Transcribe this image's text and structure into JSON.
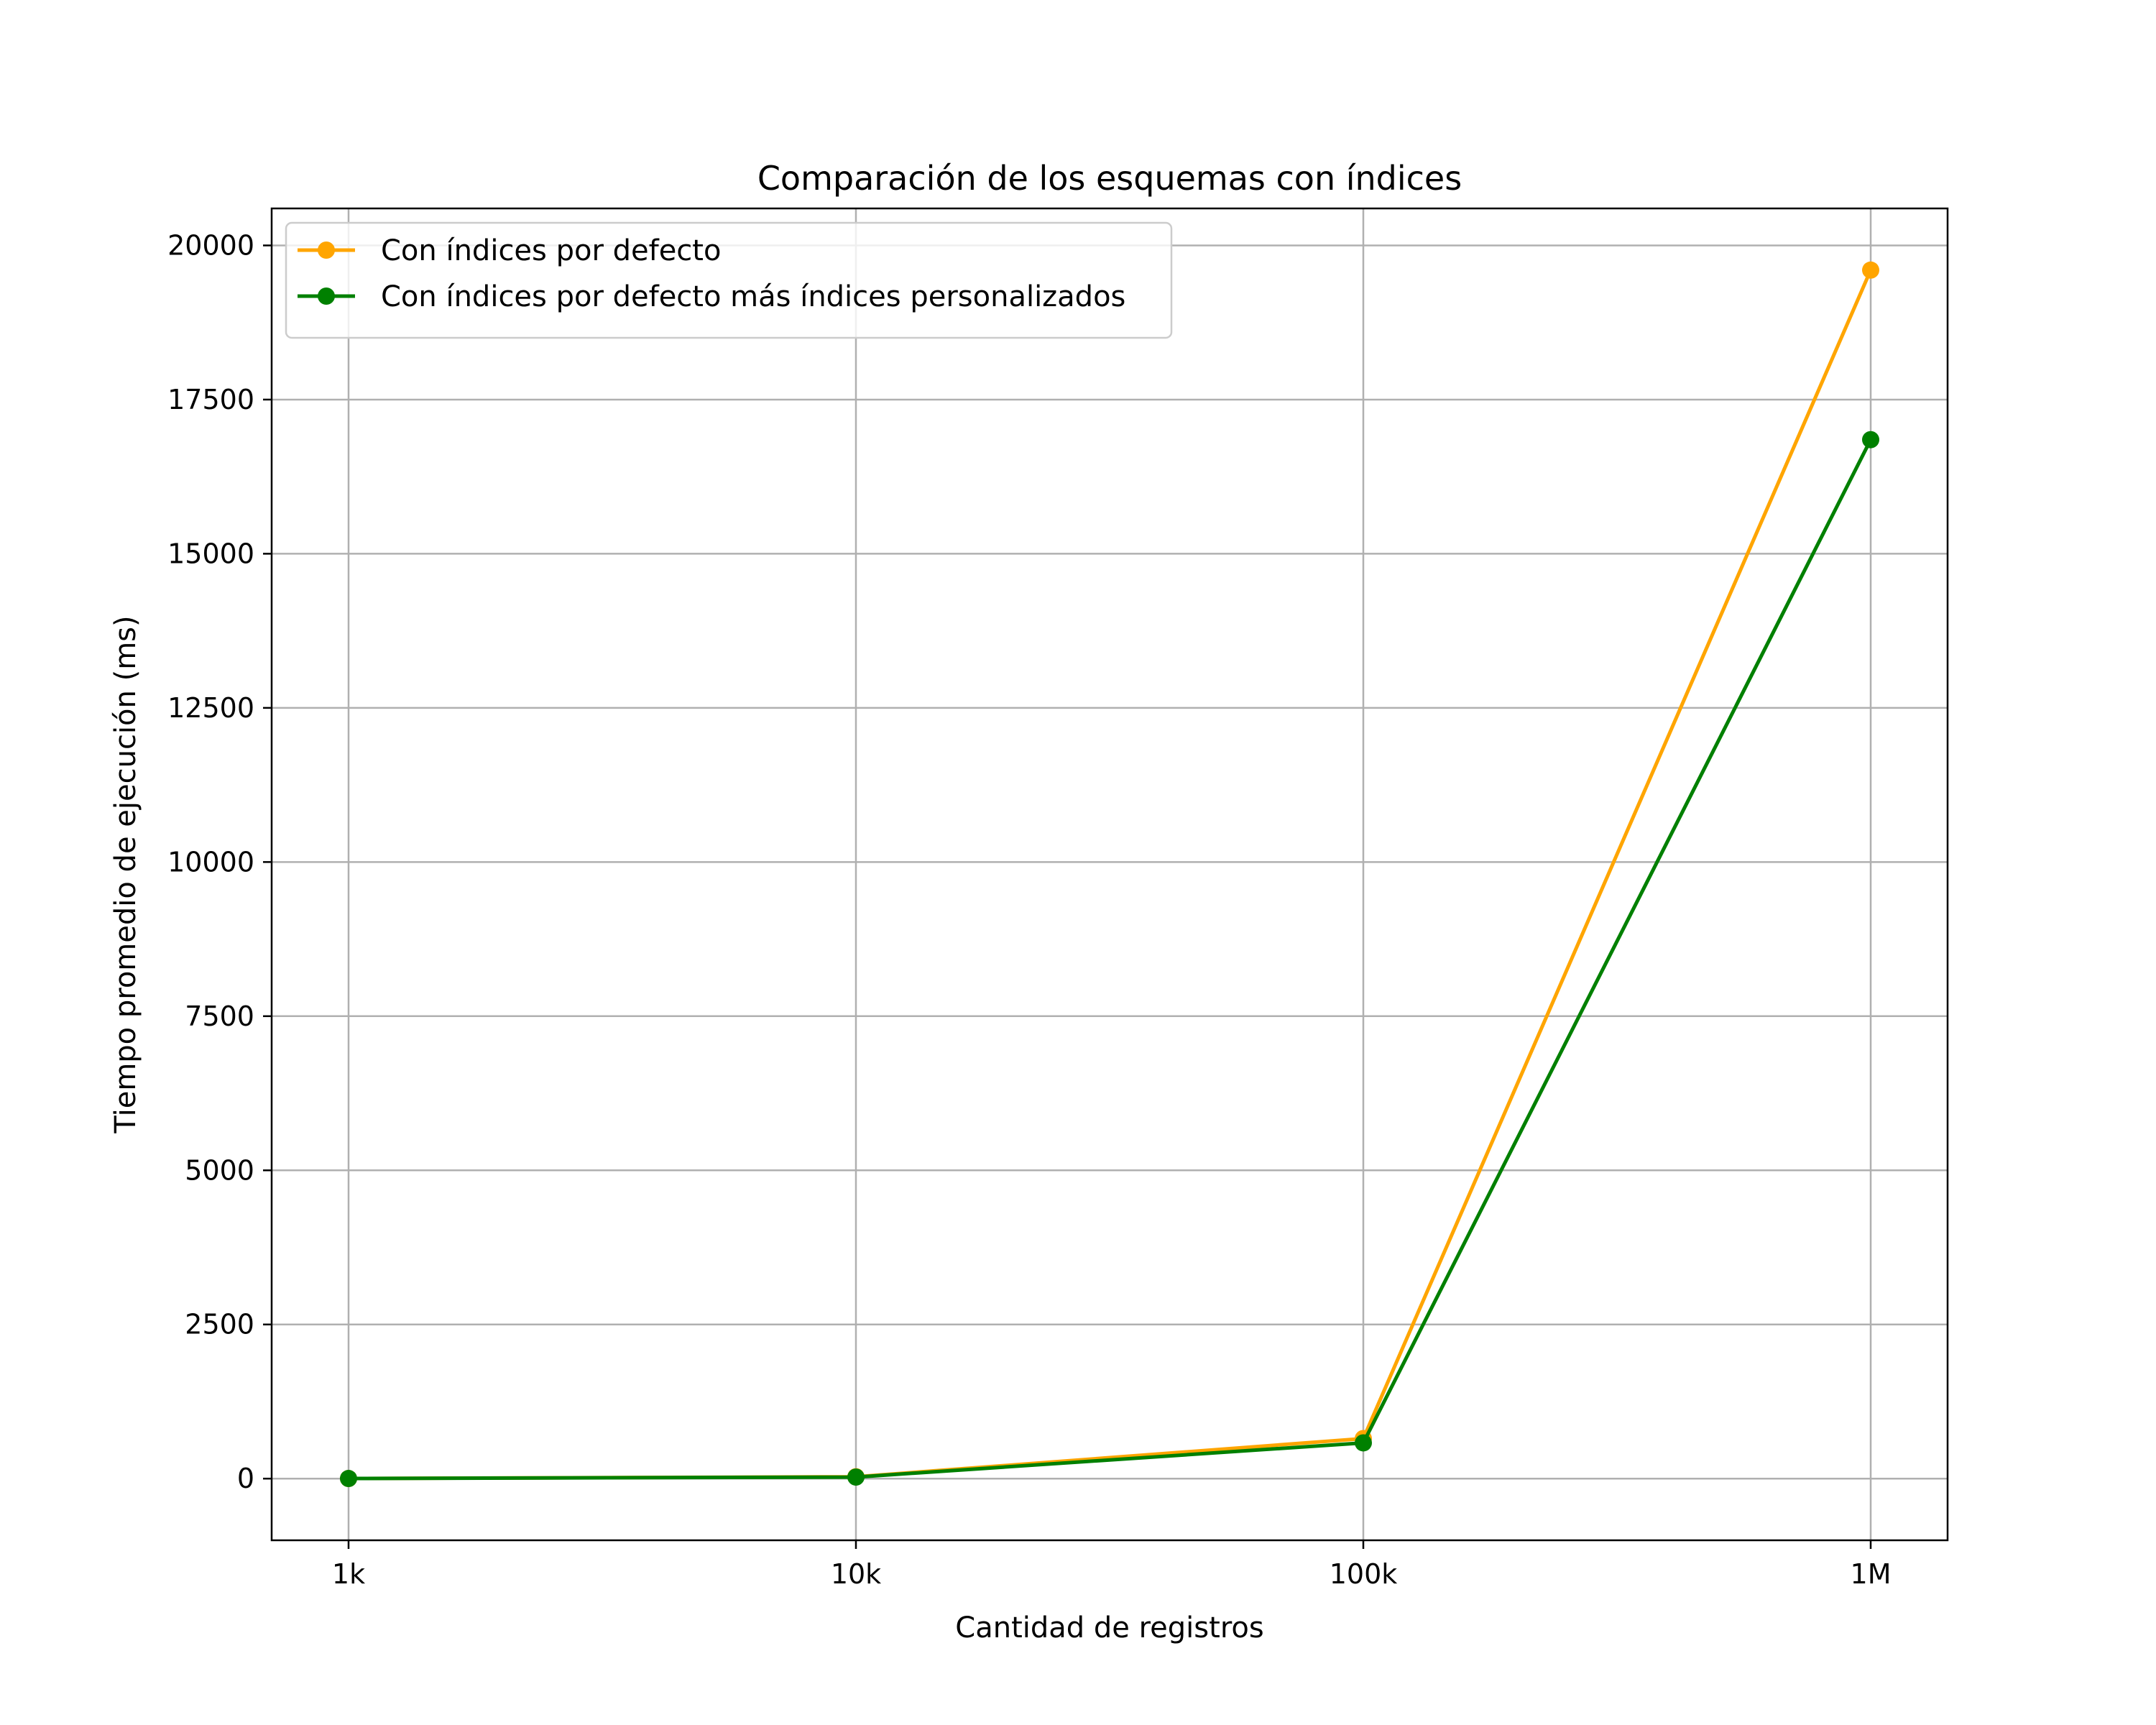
{
  "chart_data": {
    "type": "line",
    "title": "Comparación de los esquemas con índices",
    "xlabel": "Cantidad de registros",
    "ylabel": "Tiempo promedio de ejecución (ms)",
    "categories": [
      "1k",
      "10k",
      "100k",
      "1M"
    ],
    "y_ticks": [
      0,
      2500,
      5000,
      7500,
      10000,
      12500,
      15000,
      17500,
      20000
    ],
    "ylim": [
      -1000,
      20600
    ],
    "grid": true,
    "legend_position": "top-left",
    "series": [
      {
        "name": "Con índices por defecto",
        "color": "#ffa500",
        "marker": "circle",
        "values": [
          2,
          30,
          650,
          19600
        ]
      },
      {
        "name": "Con índices por defecto más índices personalizados",
        "color": "#008000",
        "marker": "circle",
        "values": [
          2,
          25,
          580,
          16850
        ]
      }
    ]
  }
}
